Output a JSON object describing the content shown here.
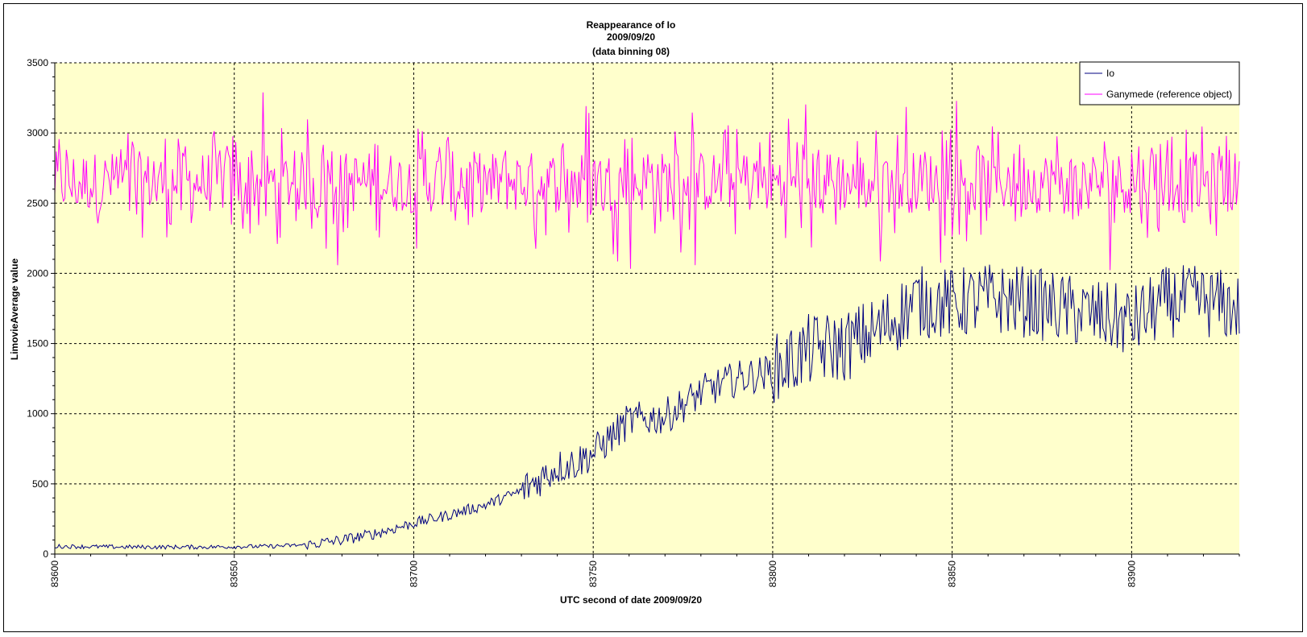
{
  "chart_data": {
    "type": "line",
    "title": [
      "Reappearance of Io",
      "2009/09/20",
      "(data binning 08)"
    ],
    "xlabel": "UTC second  of date 2009/09/20",
    "ylabel": "LimovieAverage value",
    "xlim": [
      83600,
      83930
    ],
    "ylim": [
      0,
      3500
    ],
    "x_ticks": [
      "83600",
      "83650",
      "83700",
      "83750",
      "83800",
      "83850",
      "83900"
    ],
    "y_ticks": [
      "0",
      "500",
      "1000",
      "1500",
      "2000",
      "2500",
      "3000",
      "3500"
    ],
    "grid": true,
    "legend_position": "top-right",
    "plot_background": "#FFFFCC",
    "series": [
      {
        "name": "Io",
        "color": "#000080",
        "description_of_trend": "flat ~50 until 83670, then rising steeply to ~1800 by 83850, noisy plateau 1500-2200 thereafter",
        "x": [
          83600,
          83620,
          83640,
          83660,
          83670,
          83680,
          83690,
          83700,
          83710,
          83720,
          83730,
          83740,
          83745,
          83750,
          83760,
          83770,
          83780,
          83790,
          83800,
          83810,
          83820,
          83830,
          83840,
          83850,
          83860,
          83870,
          83880,
          83890,
          83900,
          83910,
          83920,
          83930
        ],
        "y": [
          55,
          50,
          50,
          55,
          65,
          100,
          150,
          220,
          280,
          350,
          450,
          620,
          650,
          720,
          950,
          980,
          1150,
          1250,
          1300,
          1450,
          1480,
          1600,
          1800,
          1780,
          1820,
          1800,
          1750,
          1700,
          1650,
          1800,
          1800,
          1750
        ]
      },
      {
        "name": "Ganymede (reference object)",
        "color": "#FF00FF",
        "description_of_trend": "noisy constant level around 2650, range ~2000-3500",
        "x": [
          83600,
          83930
        ],
        "y": [
          2650,
          2650
        ]
      }
    ]
  }
}
